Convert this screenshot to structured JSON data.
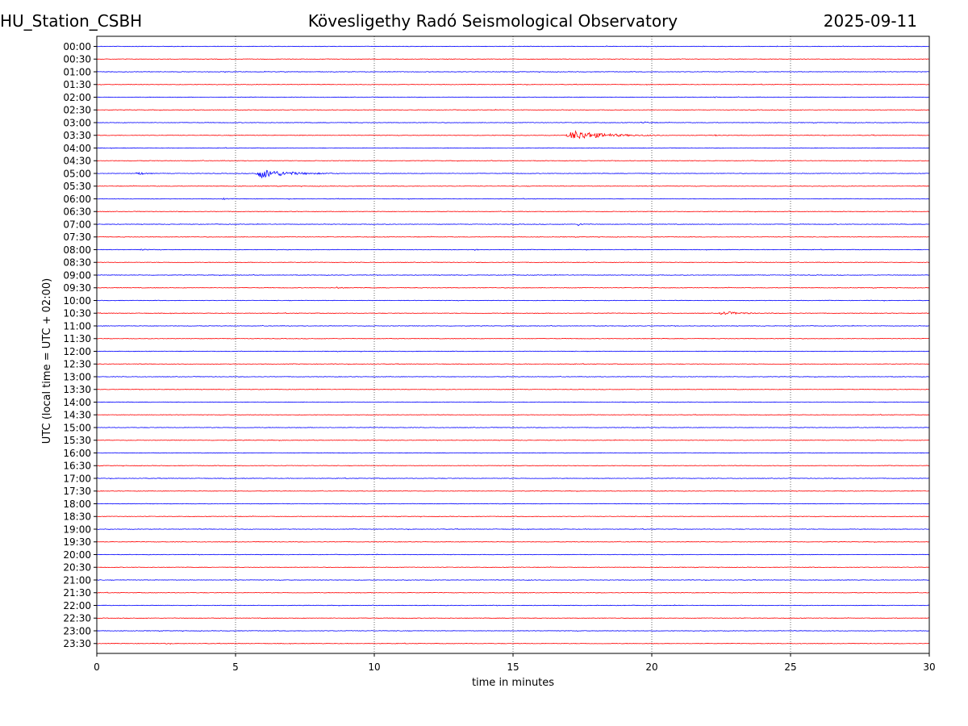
{
  "header": {
    "station": "HU_Station_CSBH",
    "observatory": "Kövesligethy Radó Seismological Observatory",
    "date": "2025-09-11"
  },
  "chart_data": {
    "type": "line",
    "subtype": "helicorder",
    "xlabel": "time in minutes",
    "ylabel": "UTC (local time = UTC + 02:00)",
    "xlim": [
      0,
      30
    ],
    "x_ticks": [
      0,
      5,
      10,
      15,
      20,
      25,
      30
    ],
    "grid": "vertical dotted lines at each x tick",
    "line_colors": [
      "#0000ff",
      "#ff0000"
    ],
    "rows": [
      "00:00",
      "00:30",
      "01:00",
      "01:30",
      "02:00",
      "02:30",
      "03:00",
      "03:30",
      "04:00",
      "04:30",
      "05:00",
      "05:30",
      "06:00",
      "06:30",
      "07:00",
      "07:30",
      "08:00",
      "08:30",
      "09:00",
      "09:30",
      "10:00",
      "10:30",
      "11:00",
      "11:30",
      "12:00",
      "12:30",
      "13:00",
      "13:30",
      "14:00",
      "14:30",
      "15:00",
      "15:30",
      "16:00",
      "16:30",
      "17:00",
      "17:30",
      "18:00",
      "18:30",
      "19:00",
      "19:30",
      "20:00",
      "20:30",
      "21:00",
      "21:30",
      "22:00",
      "22:30",
      "23:00",
      "23:30"
    ],
    "events": [
      {
        "row": "03:00",
        "start": 19.6,
        "duration": 0.8,
        "amplitude": 0.3
      },
      {
        "row": "03:00",
        "start": 9.1,
        "duration": 0.3,
        "amplitude": 0.15
      },
      {
        "row": "03:30",
        "start": 16.9,
        "duration": 3.5,
        "amplitude": 1.7
      },
      {
        "row": "03:30",
        "start": 22.2,
        "duration": 0.6,
        "amplitude": 0.2
      },
      {
        "row": "03:30",
        "start": 7.2,
        "duration": 0.4,
        "amplitude": 0.15
      },
      {
        "row": "03:30",
        "start": 27.9,
        "duration": 0.3,
        "amplitude": 0.15
      },
      {
        "row": "02:00",
        "start": 22.2,
        "duration": 0.4,
        "amplitude": 0.2
      },
      {
        "row": "05:00",
        "start": 1.4,
        "duration": 0.7,
        "amplitude": 0.6
      },
      {
        "row": "05:00",
        "start": 5.7,
        "duration": 3.0,
        "amplitude": 1.6
      },
      {
        "row": "06:00",
        "start": 4.5,
        "duration": 0.4,
        "amplitude": 0.3
      },
      {
        "row": "07:00",
        "start": 17.3,
        "duration": 0.5,
        "amplitude": 0.45
      },
      {
        "row": "08:00",
        "start": 1.5,
        "duration": 0.8,
        "amplitude": 0.2
      },
      {
        "row": "08:00",
        "start": 13.6,
        "duration": 0.3,
        "amplitude": 0.2
      },
      {
        "row": "09:30",
        "start": 8.6,
        "duration": 0.6,
        "amplitude": 0.35
      },
      {
        "row": "10:30",
        "start": 22.4,
        "duration": 2.2,
        "amplitude": 0.55
      },
      {
        "row": "13:00",
        "start": 23.6,
        "duration": 0.4,
        "amplitude": 0.15
      },
      {
        "row": "17:30",
        "start": 26.8,
        "duration": 0.4,
        "amplitude": 0.15
      },
      {
        "row": "18:30",
        "start": 9.1,
        "duration": 0.4,
        "amplitude": 0.15
      },
      {
        "row": "21:00",
        "start": 15.5,
        "duration": 0.3,
        "amplitude": 0.15
      },
      {
        "row": "23:30",
        "start": 2.4,
        "duration": 0.5,
        "amplitude": 0.15
      }
    ]
  }
}
